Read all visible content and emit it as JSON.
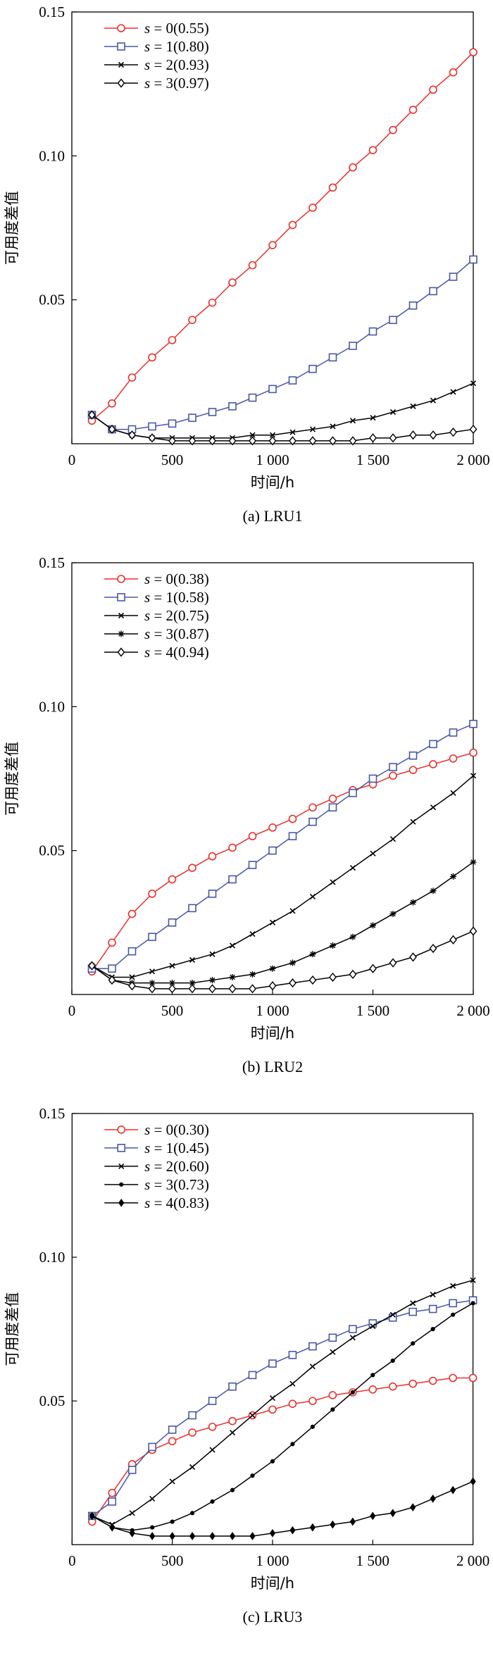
{
  "chart_data": [
    {
      "type": "line",
      "caption": "(a) LRU1",
      "xlabel": "时间/h",
      "ylabel": "可用度差值",
      "xlim": [
        0,
        2000
      ],
      "ylim": [
        0,
        0.15
      ],
      "xticks": [
        0,
        500,
        1000,
        1500,
        2000
      ],
      "xtick_labels": [
        "0",
        "500",
        "1 000",
        "1 500",
        "2 000"
      ],
      "yticks": [
        0.05,
        0.1,
        0.15
      ],
      "ytick_labels": [
        "0.05",
        "0.10",
        "0.15"
      ],
      "x": [
        100,
        200,
        300,
        400,
        500,
        600,
        700,
        800,
        900,
        1000,
        1100,
        1200,
        1300,
        1400,
        1500,
        1600,
        1700,
        1800,
        1900,
        2000
      ],
      "series": [
        {
          "name": "s = 0(0.55)",
          "var": "s",
          "rest": " = 0(0.55)",
          "color": "#e8312d",
          "marker": "circle",
          "values": [
            0.008,
            0.014,
            0.023,
            0.03,
            0.036,
            0.043,
            0.049,
            0.056,
            0.062,
            0.069,
            0.076,
            0.082,
            0.089,
            0.096,
            0.102,
            0.109,
            0.116,
            0.123,
            0.129,
            0.136
          ]
        },
        {
          "name": "s = 1(0.80)",
          "var": "s",
          "rest": " = 1(0.80)",
          "color": "#4858a8",
          "marker": "square",
          "values": [
            0.01,
            0.005,
            0.005,
            0.006,
            0.007,
            0.009,
            0.011,
            0.013,
            0.016,
            0.019,
            0.022,
            0.026,
            0.03,
            0.034,
            0.039,
            0.043,
            0.048,
            0.053,
            0.058,
            0.064
          ]
        },
        {
          "name": "s = 2(0.93)",
          "var": "s",
          "rest": " = 2(0.93)",
          "color": "#000000",
          "marker": "x",
          "values": [
            0.01,
            0.005,
            0.003,
            0.002,
            0.002,
            0.002,
            0.002,
            0.002,
            0.003,
            0.003,
            0.004,
            0.005,
            0.006,
            0.008,
            0.009,
            0.011,
            0.013,
            0.015,
            0.018,
            0.021
          ]
        },
        {
          "name": "s = 3(0.97)",
          "var": "s",
          "rest": " = 3(0.97)",
          "color": "#000000",
          "marker": "diamond",
          "values": [
            0.01,
            0.005,
            0.003,
            0.002,
            0.001,
            0.001,
            0.001,
            0.001,
            0.001,
            0.001,
            0.001,
            0.001,
            0.001,
            0.001,
            0.002,
            0.002,
            0.003,
            0.003,
            0.004,
            0.005
          ]
        }
      ]
    },
    {
      "type": "line",
      "caption": "(b) LRU2",
      "xlabel": "时间/h",
      "ylabel": "可用度差值",
      "xlim": [
        0,
        2000
      ],
      "ylim": [
        0,
        0.15
      ],
      "xticks": [
        0,
        500,
        1000,
        1500,
        2000
      ],
      "xtick_labels": [
        "0",
        "500",
        "1 000",
        "1 500",
        "2 000"
      ],
      "yticks": [
        0.05,
        0.1,
        0.15
      ],
      "ytick_labels": [
        "0.05",
        "0.10",
        "0.15"
      ],
      "x": [
        100,
        200,
        300,
        400,
        500,
        600,
        700,
        800,
        900,
        1000,
        1100,
        1200,
        1300,
        1400,
        1500,
        1600,
        1700,
        1800,
        1900,
        2000
      ],
      "series": [
        {
          "name": "s = 0(0.38)",
          "var": "s",
          "rest": " = 0(0.38)",
          "color": "#e8312d",
          "marker": "circle",
          "values": [
            0.008,
            0.018,
            0.028,
            0.035,
            0.04,
            0.044,
            0.048,
            0.051,
            0.055,
            0.058,
            0.061,
            0.065,
            0.068,
            0.071,
            0.073,
            0.076,
            0.078,
            0.08,
            0.082,
            0.084
          ]
        },
        {
          "name": "s = 1(0.58)",
          "var": "s",
          "rest": " = 1(0.58)",
          "color": "#4858a8",
          "marker": "square",
          "values": [
            0.009,
            0.009,
            0.015,
            0.02,
            0.025,
            0.03,
            0.035,
            0.04,
            0.045,
            0.05,
            0.055,
            0.06,
            0.065,
            0.07,
            0.075,
            0.079,
            0.083,
            0.087,
            0.091,
            0.094
          ]
        },
        {
          "name": "s = 2(0.75)",
          "var": "s",
          "rest": " = 2(0.75)",
          "color": "#000000",
          "marker": "x",
          "values": [
            0.01,
            0.006,
            0.006,
            0.008,
            0.01,
            0.012,
            0.014,
            0.017,
            0.021,
            0.025,
            0.029,
            0.034,
            0.039,
            0.044,
            0.049,
            0.054,
            0.06,
            0.065,
            0.07,
            0.076
          ]
        },
        {
          "name": "s = 3(0.87)",
          "var": "s",
          "rest": " = 3(0.87)",
          "color": "#000000",
          "marker": "star",
          "values": [
            0.01,
            0.005,
            0.004,
            0.004,
            0.004,
            0.004,
            0.005,
            0.006,
            0.007,
            0.009,
            0.011,
            0.014,
            0.017,
            0.02,
            0.024,
            0.028,
            0.032,
            0.036,
            0.041,
            0.046
          ]
        },
        {
          "name": "s = 4(0.94)",
          "var": "s",
          "rest": " = 4(0.94)",
          "color": "#000000",
          "marker": "diamond",
          "values": [
            0.01,
            0.005,
            0.003,
            0.002,
            0.002,
            0.002,
            0.002,
            0.002,
            0.002,
            0.003,
            0.004,
            0.005,
            0.006,
            0.007,
            0.009,
            0.011,
            0.013,
            0.016,
            0.019,
            0.022
          ]
        }
      ]
    },
    {
      "type": "line",
      "caption": "(c) LRU3",
      "xlabel": "时间/h",
      "ylabel": "可用度差值",
      "xlim": [
        0,
        2000
      ],
      "ylim": [
        0,
        0.15
      ],
      "xticks": [
        0,
        500,
        1000,
        1500,
        2000
      ],
      "xtick_labels": [
        "0",
        "500",
        "1 000",
        "1 500",
        "2 000"
      ],
      "yticks": [
        0.05,
        0.1,
        0.15
      ],
      "ytick_labels": [
        "0.05",
        "0.10",
        "0.15"
      ],
      "x": [
        100,
        200,
        300,
        400,
        500,
        600,
        700,
        800,
        900,
        1000,
        1100,
        1200,
        1300,
        1400,
        1500,
        1600,
        1700,
        1800,
        1900,
        2000
      ],
      "series": [
        {
          "name": "s = 0(0.30)",
          "var": "s",
          "rest": " = 0(0.30)",
          "color": "#e8312d",
          "marker": "circle",
          "values": [
            0.008,
            0.018,
            0.028,
            0.033,
            0.036,
            0.039,
            0.041,
            0.043,
            0.045,
            0.047,
            0.049,
            0.05,
            0.052,
            0.053,
            0.054,
            0.055,
            0.056,
            0.057,
            0.058,
            0.058
          ]
        },
        {
          "name": "s = 1(0.45)",
          "var": "s",
          "rest": " = 1(0.45)",
          "color": "#4858a8",
          "marker": "square",
          "values": [
            0.01,
            0.015,
            0.026,
            0.034,
            0.04,
            0.045,
            0.05,
            0.055,
            0.059,
            0.063,
            0.066,
            0.069,
            0.072,
            0.075,
            0.077,
            0.079,
            0.081,
            0.082,
            0.084,
            0.085
          ]
        },
        {
          "name": "s = 2(0.60)",
          "var": "s",
          "rest": " = 2(0.60)",
          "color": "#000000",
          "marker": "x",
          "values": [
            0.01,
            0.007,
            0.011,
            0.016,
            0.022,
            0.027,
            0.033,
            0.039,
            0.045,
            0.051,
            0.056,
            0.062,
            0.067,
            0.072,
            0.076,
            0.08,
            0.084,
            0.087,
            0.09,
            0.092
          ]
        },
        {
          "name": "s = 3(0.73)",
          "var": "s",
          "rest": " = 3(0.73)",
          "color": "#000000",
          "marker": "dot",
          "values": [
            0.01,
            0.006,
            0.005,
            0.006,
            0.008,
            0.011,
            0.015,
            0.019,
            0.024,
            0.029,
            0.035,
            0.041,
            0.047,
            0.053,
            0.059,
            0.064,
            0.07,
            0.075,
            0.08,
            0.084
          ]
        },
        {
          "name": "s = 4(0.83)",
          "var": "s",
          "rest": " = 4(0.83)",
          "color": "#000000",
          "marker": "diamondfill",
          "values": [
            0.01,
            0.006,
            0.004,
            0.003,
            0.003,
            0.003,
            0.003,
            0.003,
            0.003,
            0.004,
            0.005,
            0.006,
            0.007,
            0.008,
            0.01,
            0.011,
            0.013,
            0.016,
            0.019,
            0.022
          ]
        }
      ]
    }
  ]
}
